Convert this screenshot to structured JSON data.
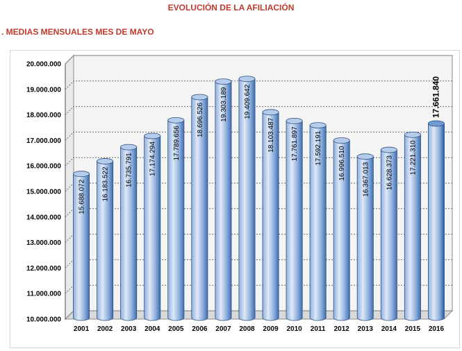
{
  "title": "EVOLUCIÓN DE LA AFILIACIÓN",
  "subtitle": ". MEDIAS MENSUALES MES DE MAYO",
  "colors": {
    "title": "#c0392b",
    "bar_light": "#dfe9f7",
    "bar_mid": "#8fb0dc",
    "bar_dark": "#3f6eb0",
    "bar_highlight_dark": "#1f5aa6",
    "wall": "#f4f4f4",
    "grid": "#6b6b6b"
  },
  "chart_data": {
    "type": "bar",
    "style": "3d-cylinder",
    "categories": [
      "2001",
      "2002",
      "2003",
      "2004",
      "2005",
      "2006",
      "2007",
      "2008",
      "2009",
      "2010",
      "2011",
      "2012",
      "2013",
      "2014",
      "2015",
      "2016"
    ],
    "values": [
      15688072,
      16183522,
      16735791,
      17174294,
      17789656,
      18696526,
      19303189,
      19409642,
      18103487,
      17761897,
      17592191,
      16996510,
      16367013,
      16628373,
      17221310,
      17661840
    ],
    "data_labels": [
      "15.688.072",
      "16.183.522",
      "16.735.791",
      "17.174.294",
      "17.789.656",
      "18.696.526",
      "19.303.189",
      "19.409.642",
      "18.103.487",
      "17.761.897",
      "17.592.191",
      "16.996.510",
      "16.367.013",
      "16.628.373",
      "17.221.310",
      "17.661.840"
    ],
    "highlight_category": "2016",
    "ylim": [
      10000000,
      20000000
    ],
    "y_ticks": [
      10000000,
      11000000,
      12000000,
      13000000,
      14000000,
      15000000,
      16000000,
      17000000,
      18000000,
      19000000,
      20000000
    ],
    "y_tick_labels": [
      "10.000.000",
      "11.000.000",
      "12.000.000",
      "13.000.000",
      "14.000.000",
      "15.000.000",
      "16.000.000",
      "17.000.000",
      "18.000.000",
      "19.000.000",
      "20.000.000"
    ],
    "grid": true,
    "legend": "none"
  }
}
